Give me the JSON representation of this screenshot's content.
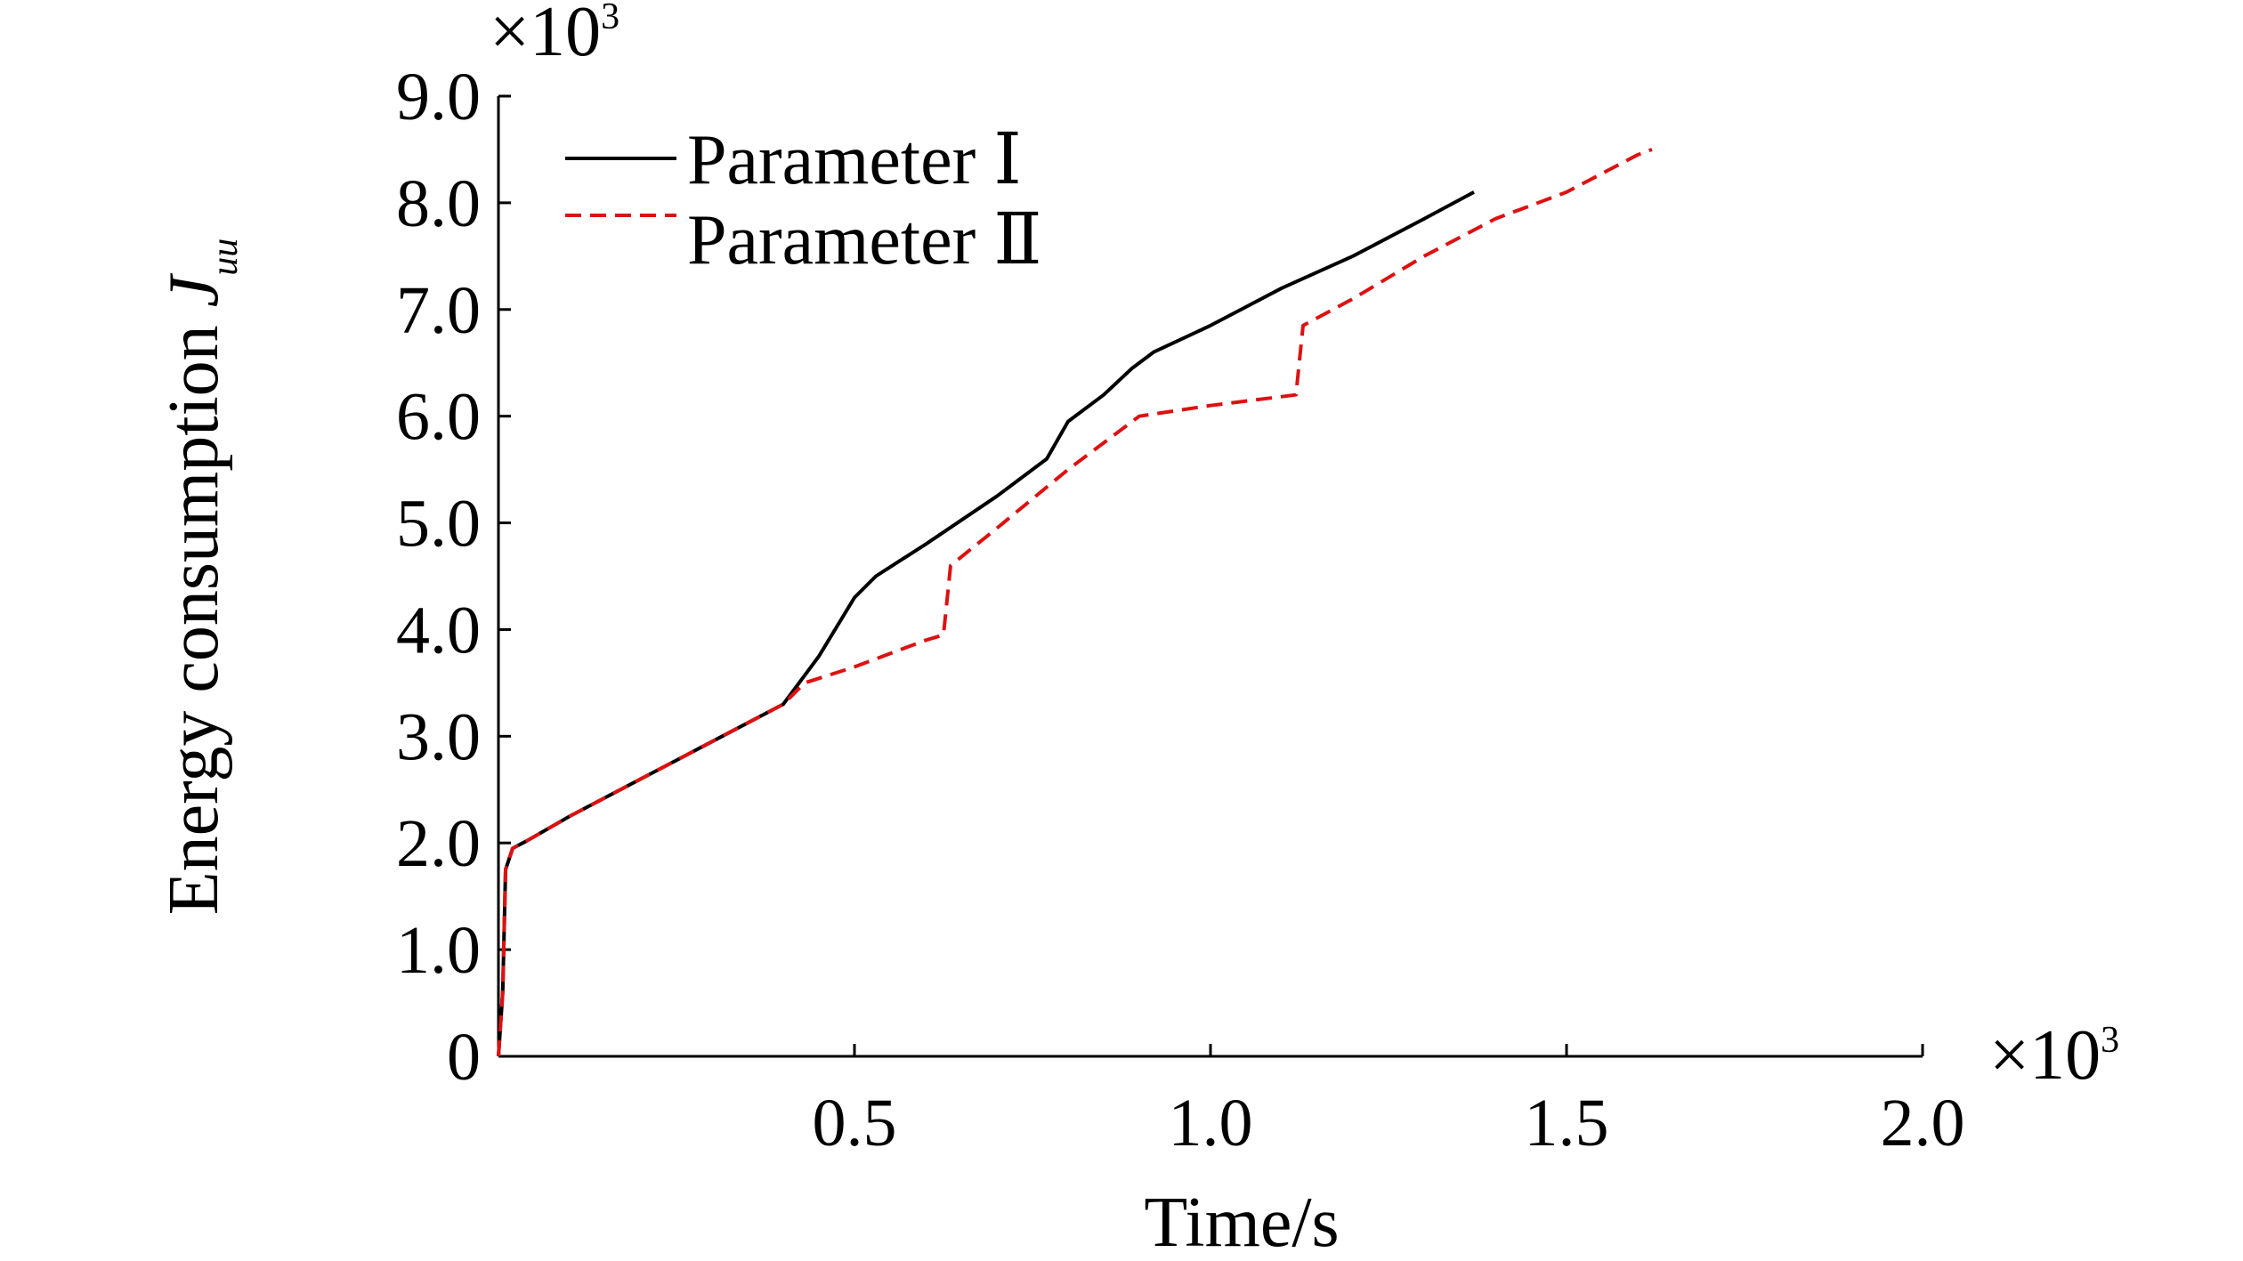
{
  "chart_data": {
    "type": "line",
    "xlabel": "Time/s",
    "ylabel": "Energy consumption ",
    "ylabel_symbol": "J",
    "ylabel_subscript": "uu",
    "x_multiplier": "×10",
    "y_multiplier": "×10",
    "multiplier_exponent": "3",
    "xlim": [
      0,
      2.0
    ],
    "ylim": [
      0,
      9.0
    ],
    "x_ticks": [
      "0.5",
      "1.0",
      "1.5",
      "2.0"
    ],
    "x_tick_values": [
      0.5,
      1.0,
      1.5,
      2.0
    ],
    "y_ticks": [
      "0",
      "1.0",
      "2.0",
      "3.0",
      "4.0",
      "5.0",
      "6.0",
      "7.0",
      "8.0",
      "9.0"
    ],
    "y_tick_values": [
      0,
      1,
      2,
      3,
      4,
      5,
      6,
      7,
      8,
      9
    ],
    "legend_position": "top-left",
    "grid": false,
    "series": [
      {
        "name": "Parameter Ⅰ",
        "color": "#000000",
        "style": "solid",
        "points": [
          [
            0.0,
            0.0
          ],
          [
            0.006,
            0.6
          ],
          [
            0.01,
            1.75
          ],
          [
            0.02,
            1.95
          ],
          [
            0.04,
            2.02
          ],
          [
            0.1,
            2.25
          ],
          [
            0.2,
            2.6
          ],
          [
            0.3,
            2.95
          ],
          [
            0.4,
            3.3
          ],
          [
            0.45,
            3.75
          ],
          [
            0.5,
            4.3
          ],
          [
            0.53,
            4.5
          ],
          [
            0.6,
            4.8
          ],
          [
            0.7,
            5.25
          ],
          [
            0.77,
            5.6
          ],
          [
            0.8,
            5.95
          ],
          [
            0.85,
            6.2
          ],
          [
            0.89,
            6.45
          ],
          [
            0.92,
            6.6
          ],
          [
            1.0,
            6.85
          ],
          [
            1.1,
            7.2
          ],
          [
            1.2,
            7.5
          ],
          [
            1.3,
            7.85
          ],
          [
            1.37,
            8.1
          ]
        ]
      },
      {
        "name": "Parameter Ⅱ",
        "color": "#dd1111",
        "style": "dashed",
        "points": [
          [
            0.0,
            0.0
          ],
          [
            0.006,
            0.6
          ],
          [
            0.01,
            1.75
          ],
          [
            0.02,
            1.95
          ],
          [
            0.04,
            2.02
          ],
          [
            0.1,
            2.25
          ],
          [
            0.2,
            2.6
          ],
          [
            0.3,
            2.95
          ],
          [
            0.4,
            3.3
          ],
          [
            0.43,
            3.5
          ],
          [
            0.5,
            3.65
          ],
          [
            0.6,
            3.9
          ],
          [
            0.625,
            3.95
          ],
          [
            0.635,
            4.6
          ],
          [
            0.7,
            4.95
          ],
          [
            0.8,
            5.5
          ],
          [
            0.9,
            6.0
          ],
          [
            1.0,
            6.1
          ],
          [
            1.12,
            6.2
          ],
          [
            1.13,
            6.85
          ],
          [
            1.2,
            7.1
          ],
          [
            1.3,
            7.5
          ],
          [
            1.4,
            7.85
          ],
          [
            1.5,
            8.1
          ],
          [
            1.6,
            8.45
          ],
          [
            1.62,
            8.5
          ]
        ]
      }
    ]
  }
}
